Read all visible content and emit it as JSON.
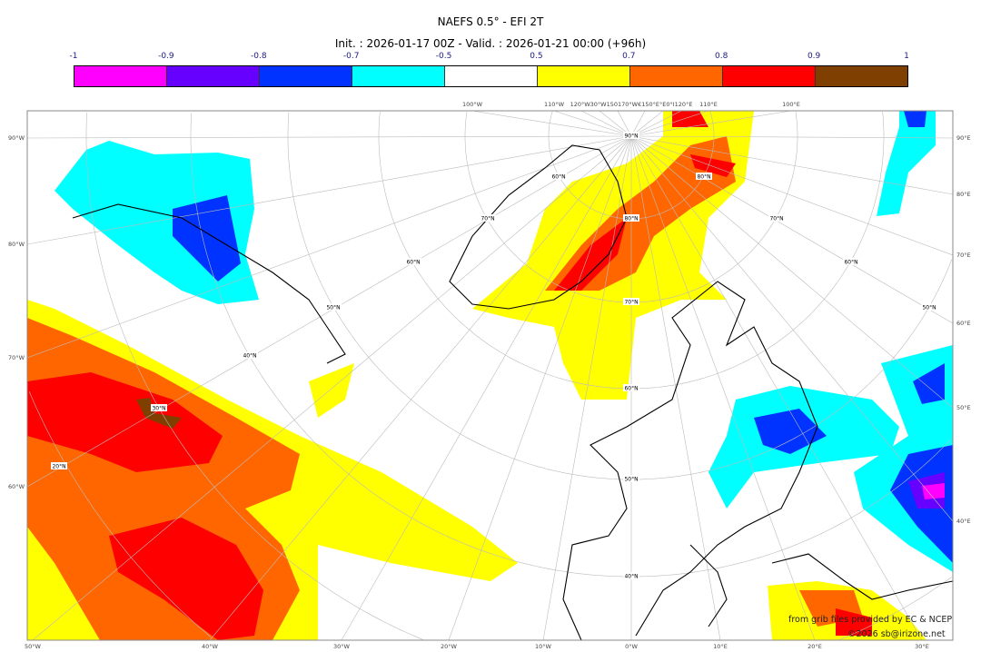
{
  "title": "NAEFS 0.5° - EFI 2T",
  "subtitle": "Init. : 2026-01-17 00Z - Valid. : 2026-01-21 00:00 (+96h)",
  "colorbar": {
    "ticks": [
      "-1",
      "-0.9",
      "-0.8",
      "-0.7",
      "-0.5",
      "0.5",
      "0.7",
      "0.8",
      "0.9",
      "1"
    ],
    "colors": [
      "#ff00ff",
      "#6600ff",
      "#0033ff",
      "#00ffff",
      "#ffffff",
      "#ffff00",
      "#ff6600",
      "#ff0000",
      "#7f3f00"
    ]
  },
  "axis_labels": {
    "left": [
      "90°W",
      "80°W",
      "70°W",
      "60°W"
    ],
    "bottom": [
      "50°W",
      "40°W",
      "30°W",
      "20°W",
      "10°W",
      "0°W",
      "10°E",
      "20°E",
      "30°E"
    ],
    "right": [
      "90°E",
      "80°E",
      "70°E",
      "60°E",
      "50°E",
      "40°E"
    ],
    "top": [
      "100°W",
      "110°W",
      "120°W30°W150170°W€150°E°E0°I120°E",
      "110°E",
      "100°E"
    ]
  },
  "lat_labels": [
    "90°N",
    "80°N",
    "80°N",
    "70°N",
    "70°N",
    "70°N",
    "60°N",
    "60°N",
    "60°N",
    "60°N",
    "50°N",
    "50°N",
    "50°N",
    "40°N",
    "40°N",
    "30°N",
    "20°N"
  ],
  "credits": {
    "source": "from grib files provided by EC & NCEP",
    "copyright": "©2026 sb@irizone.net"
  }
}
